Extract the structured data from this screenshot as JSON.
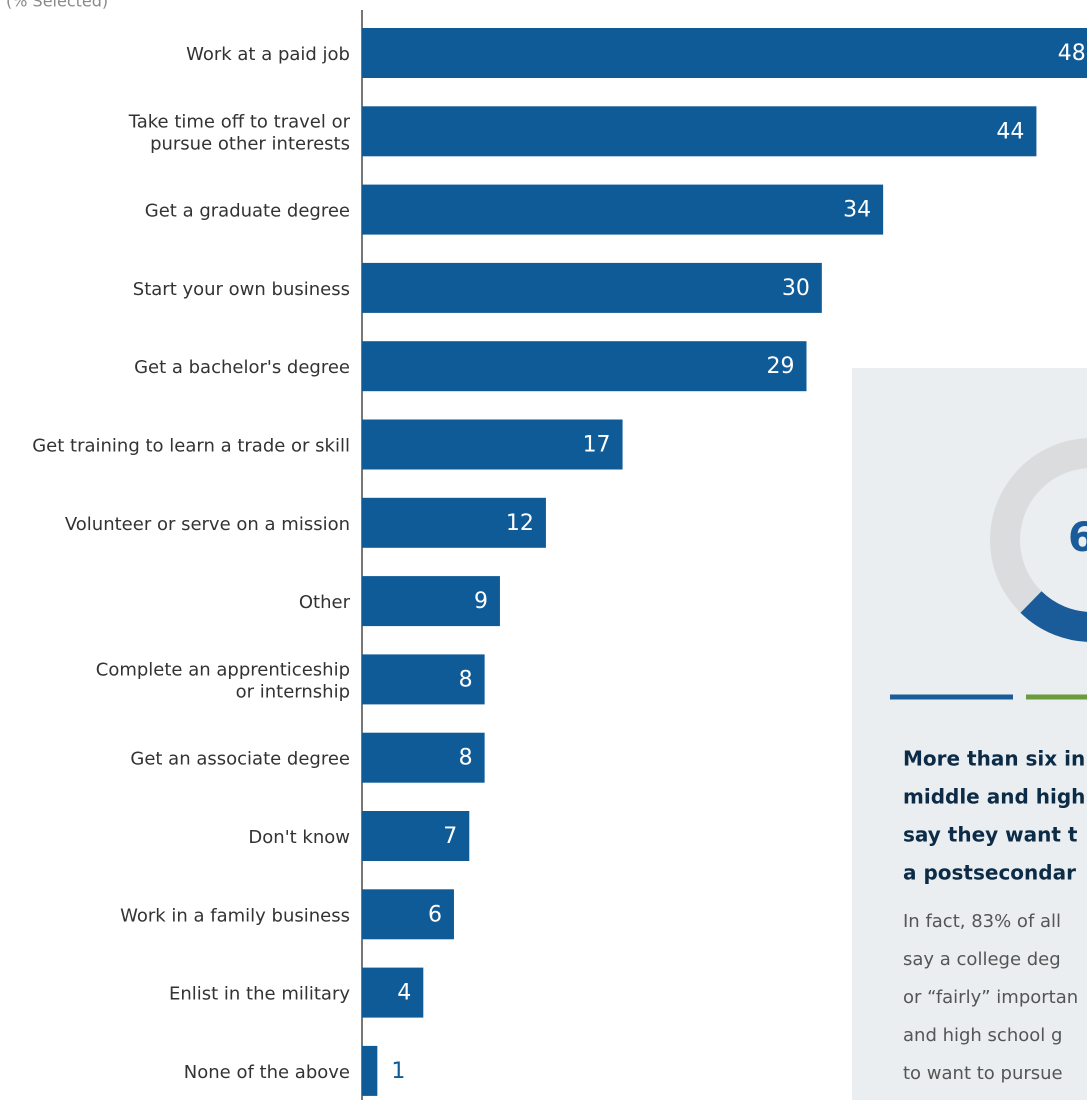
{
  "chart_data": {
    "type": "hbar",
    "subtitle": "(% Selected)",
    "categories": [
      "Work at a paid job",
      "Take time off to travel or\npursue other interests",
      "Get a graduate degree",
      "Start your own business",
      "Get a bachelor's degree",
      "Get training to learn a trade or skill",
      "Volunteer or serve on a mission",
      "Other",
      "Complete an apprenticeship\nor internship",
      "Get an associate degree",
      "Don't know",
      "Work in a family business",
      "Enlist in the military",
      "None of the above"
    ],
    "values": [
      48,
      44,
      34,
      30,
      29,
      17,
      12,
      9,
      8,
      8,
      7,
      6,
      4,
      1
    ],
    "color": "#0f5b98",
    "xlim": [
      0,
      47.3
    ]
  },
  "panel": {
    "donut_label": "6",
    "heading": [
      "More than six in",
      "middle and high",
      "say they want t",
      "a postsecondar"
    ],
    "body": [
      "In fact, 83% of all",
      "say a college deg",
      "or “fairly” importan",
      "and high school g",
      "to want to pursue"
    ]
  }
}
